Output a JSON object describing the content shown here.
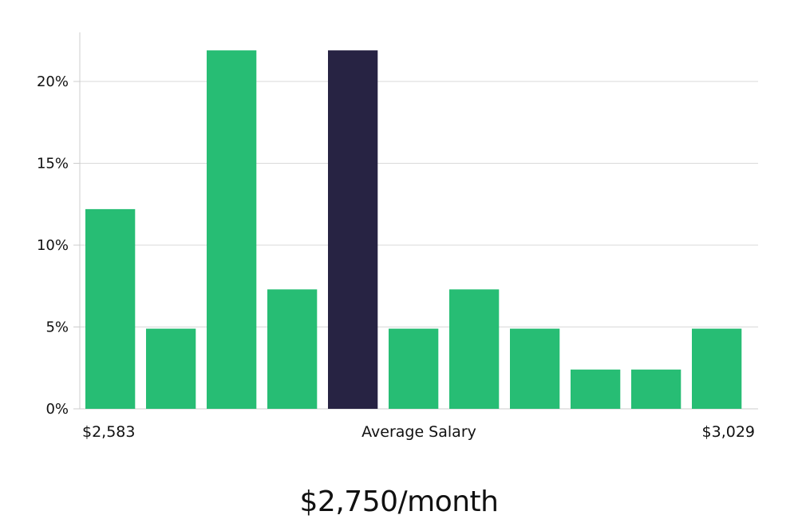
{
  "chart_data": {
    "type": "bar",
    "values": [
      12.2,
      4.9,
      21.9,
      7.3,
      21.9,
      4.9,
      7.3,
      4.9,
      2.4,
      2.4,
      4.9
    ],
    "highlight_index": 4,
    "ylim": [
      0,
      23
    ],
    "y_ticks": [
      0,
      5,
      10,
      15,
      20
    ],
    "y_tick_labels": [
      "0%",
      "5%",
      "10%",
      "15%",
      "20%"
    ],
    "x_labels": {
      "left": "$2,583",
      "center": "Average Salary",
      "right": "$3,029"
    },
    "grid": true,
    "legend": "none",
    "colors": {
      "bar": "#27bd74",
      "bar_highlight": "#272343",
      "grid": "#d9d9d9",
      "axis": "#cccccc"
    }
  },
  "salary_text": "$2,750/month"
}
